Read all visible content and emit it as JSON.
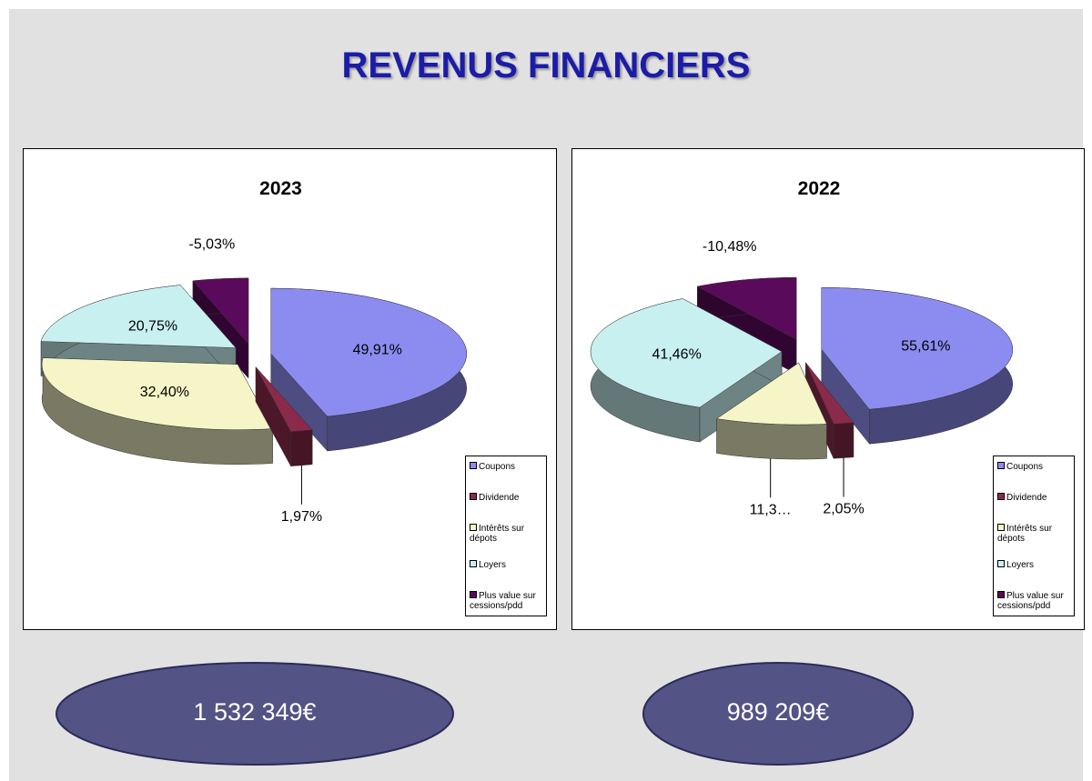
{
  "title": "REVENUS FINANCIERS",
  "chart_data": [
    {
      "type": "pie",
      "title": "2023",
      "categories": [
        "Coupons",
        "Dividende",
        "Intérêts sur dépots",
        "Loyers",
        "Plus value sur cessions/pdd"
      ],
      "values": [
        49.91,
        1.97,
        32.4,
        20.75,
        -5.03
      ],
      "value_labels": [
        "49,91%",
        "1,97%",
        "32,40%",
        "20,75%",
        "-5,03%"
      ],
      "colors": [
        "#8c8cf0",
        "#8b2a4a",
        "#f5f5c8",
        "#c8f0f0",
        "#5a0a5a"
      ],
      "legend": "bottom-right",
      "total": "1 532 349€"
    },
    {
      "type": "pie",
      "title": "2022",
      "categories": [
        "Coupons",
        "Dividende",
        "Intérêts sur dépots",
        "Loyers",
        "Plus value sur cessions/pdd"
      ],
      "values": [
        55.61,
        2.05,
        11.36,
        41.46,
        -10.48
      ],
      "value_labels": [
        "55,61%",
        "2,05%",
        "11,3…",
        "41,46%",
        "-10,48%"
      ],
      "colors": [
        "#8c8cf0",
        "#8b2a4a",
        "#f5f5c8",
        "#c8f0f0",
        "#5a0a5a"
      ],
      "legend": "bottom-right",
      "total": "989 209€"
    }
  ]
}
